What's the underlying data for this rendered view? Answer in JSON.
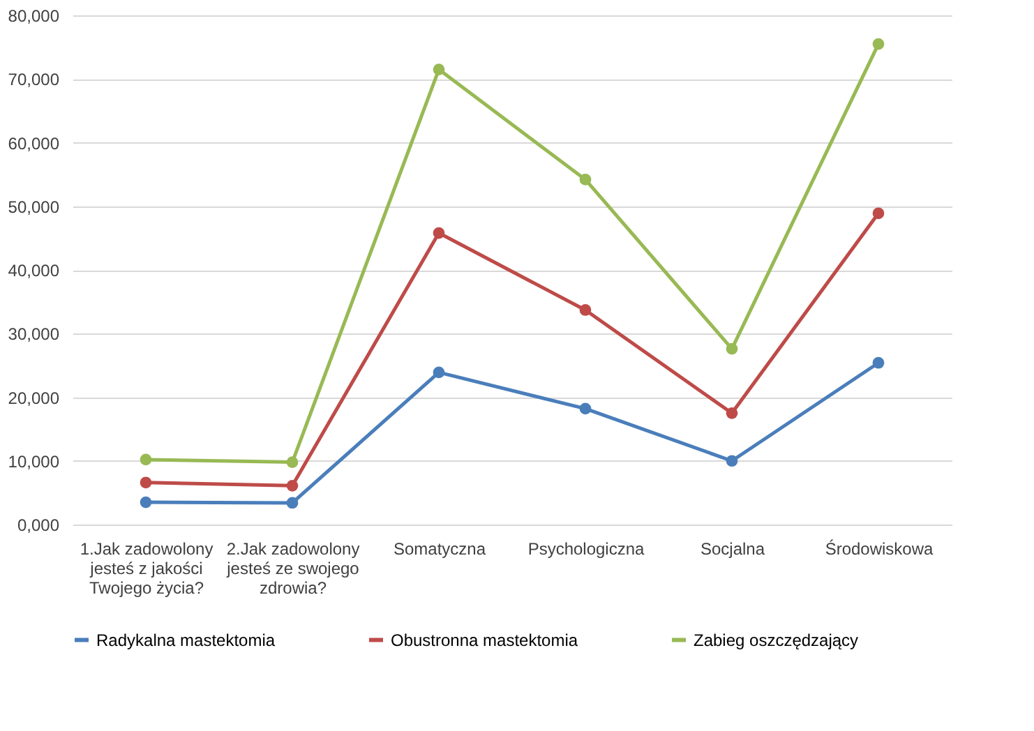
{
  "chart_data": {
    "type": "line",
    "categories": [
      "1.Jak zadowolony jesteś z jakości Twojego życia?",
      "2.Jak zadowolony jesteś ze swojego zdrowia?",
      "Somatyczna",
      "Psychologiczna",
      "Socjalna",
      "Środowiskowa"
    ],
    "series": [
      {
        "name": "Radykalna mastektomia",
        "color": "#4a7ebb",
        "values": [
          3500,
          3400,
          23900,
          18200,
          10000,
          25400
        ]
      },
      {
        "name": "Obustronna mastektomia",
        "color": "#be4b48",
        "values": [
          6600,
          6100,
          45800,
          33700,
          17500,
          48900
        ]
      },
      {
        "name": "Zabieg oszczędzający",
        "color": "#98b954",
        "values": [
          10200,
          9800,
          71500,
          54200,
          27600,
          75500
        ]
      }
    ],
    "ylim": [
      0,
      80000
    ],
    "yticks": [
      {
        "value": 0,
        "label": "0,000"
      },
      {
        "value": 10000,
        "label": "10,000"
      },
      {
        "value": 20000,
        "label": "20,000"
      },
      {
        "value": 30000,
        "label": "30,000"
      },
      {
        "value": 40000,
        "label": "40,000"
      },
      {
        "value": 50000,
        "label": "50,000"
      },
      {
        "value": 60000,
        "label": "60,000"
      },
      {
        "value": 70000,
        "label": "70,000"
      },
      {
        "value": 80000,
        "label": "80,000"
      }
    ],
    "grid": "y",
    "legend": "bottom",
    "marker": "circle",
    "line_style": "solid"
  }
}
